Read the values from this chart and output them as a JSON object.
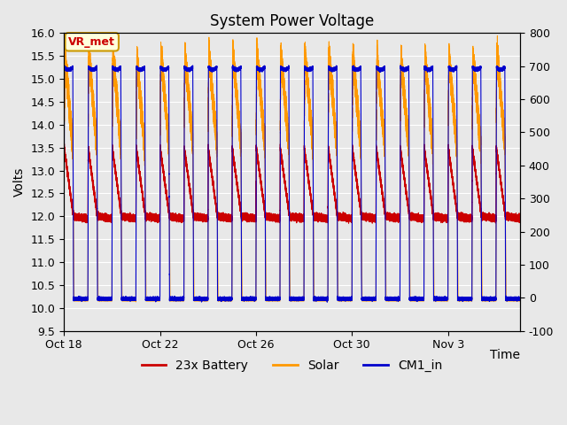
{
  "title": "System Power Voltage",
  "xlabel": "Time",
  "ylabel_left": "Volts",
  "ylim_left": [
    9.5,
    16.0
  ],
  "ylim_right": [
    -100,
    800
  ],
  "yticks_left": [
    9.5,
    10.0,
    10.5,
    11.0,
    11.5,
    12.0,
    12.5,
    13.0,
    13.5,
    14.0,
    14.5,
    15.0,
    15.5,
    16.0
  ],
  "yticks_right": [
    -100,
    0,
    100,
    200,
    300,
    400,
    500,
    600,
    700,
    800
  ],
  "xtick_labels": [
    "Oct 18",
    "Oct 22",
    "Oct 26",
    "Oct 30",
    "Nov 3"
  ],
  "xtick_positions": [
    0,
    4,
    8,
    12,
    16
  ],
  "total_days": 19,
  "background_color": "#e8e8e8",
  "grid_color": "#ffffff",
  "colors": {
    "battery": "#cc0000",
    "solar": "#ff9900",
    "cm1": "#0000cc"
  },
  "legend_labels": [
    "23x Battery",
    "Solar",
    "CM1_in"
  ],
  "vr_met_label": "VR_met",
  "vr_met_color": "#cc0000",
  "vr_met_bg": "#ffffdd",
  "vr_met_border": "#cc9900",
  "title_fontsize": 12,
  "label_fontsize": 10,
  "tick_fontsize": 9,
  "legend_fontsize": 10
}
